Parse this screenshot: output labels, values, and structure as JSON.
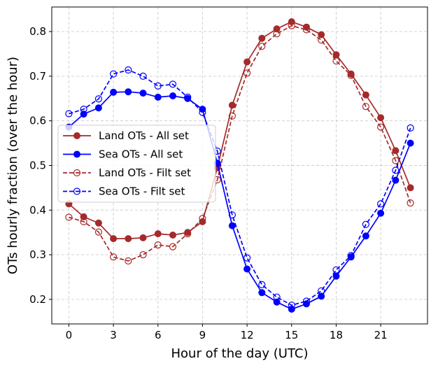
{
  "chart_data": {
    "type": "line",
    "xlabel": "Hour of the day (UTC)",
    "ylabel": "OTs hourly fraction (over the hour)",
    "xlim": [
      -1.15,
      24.15
    ],
    "ylim": [
      0.145,
      0.855
    ],
    "xticks": [
      0,
      3,
      6,
      9,
      12,
      15,
      18,
      21
    ],
    "yticks": [
      0.2,
      0.3,
      0.4,
      0.5,
      0.6,
      0.7,
      0.8
    ],
    "grid": true,
    "legend_position": "center-left",
    "x": [
      0,
      1,
      2,
      3,
      4,
      5,
      6,
      7,
      8,
      9,
      10,
      11,
      12,
      13,
      14,
      15,
      16,
      17,
      18,
      19,
      20,
      21,
      22,
      23
    ],
    "series": [
      {
        "name": "Land OTs - All set",
        "color": "#a52a2a",
        "linestyle": "solid",
        "marker": "filled",
        "values": [
          0.414,
          0.385,
          0.371,
          0.336,
          0.336,
          0.338,
          0.347,
          0.344,
          0.35,
          0.374,
          0.495,
          0.635,
          0.732,
          0.785,
          0.806,
          0.822,
          0.81,
          0.793,
          0.748,
          0.705,
          0.658,
          0.607,
          0.533,
          0.45
        ]
      },
      {
        "name": "Sea OTs - All set",
        "color": "#0000ff",
        "linestyle": "solid",
        "marker": "filled",
        "values": [
          0.586,
          0.615,
          0.629,
          0.664,
          0.665,
          0.662,
          0.653,
          0.656,
          0.65,
          0.626,
          0.505,
          0.365,
          0.268,
          0.215,
          0.194,
          0.178,
          0.19,
          0.207,
          0.252,
          0.295,
          0.342,
          0.393,
          0.467,
          0.55
        ]
      },
      {
        "name": "Land OTs - Filt set",
        "color": "#a52a2a",
        "linestyle": "dashed",
        "marker": "open",
        "values": [
          0.384,
          0.374,
          0.351,
          0.295,
          0.286,
          0.3,
          0.322,
          0.318,
          0.347,
          0.381,
          0.468,
          0.611,
          0.707,
          0.767,
          0.795,
          0.813,
          0.804,
          0.781,
          0.734,
          0.702,
          0.632,
          0.586,
          0.511,
          0.416
        ]
      },
      {
        "name": "Sea OTs - Filt set",
        "color": "#0000ff",
        "linestyle": "dashed",
        "marker": "open",
        "values": [
          0.616,
          0.626,
          0.649,
          0.705,
          0.714,
          0.7,
          0.678,
          0.682,
          0.653,
          0.619,
          0.532,
          0.389,
          0.293,
          0.233,
          0.205,
          0.187,
          0.196,
          0.219,
          0.266,
          0.298,
          0.368,
          0.414,
          0.489,
          0.584
        ]
      }
    ]
  }
}
